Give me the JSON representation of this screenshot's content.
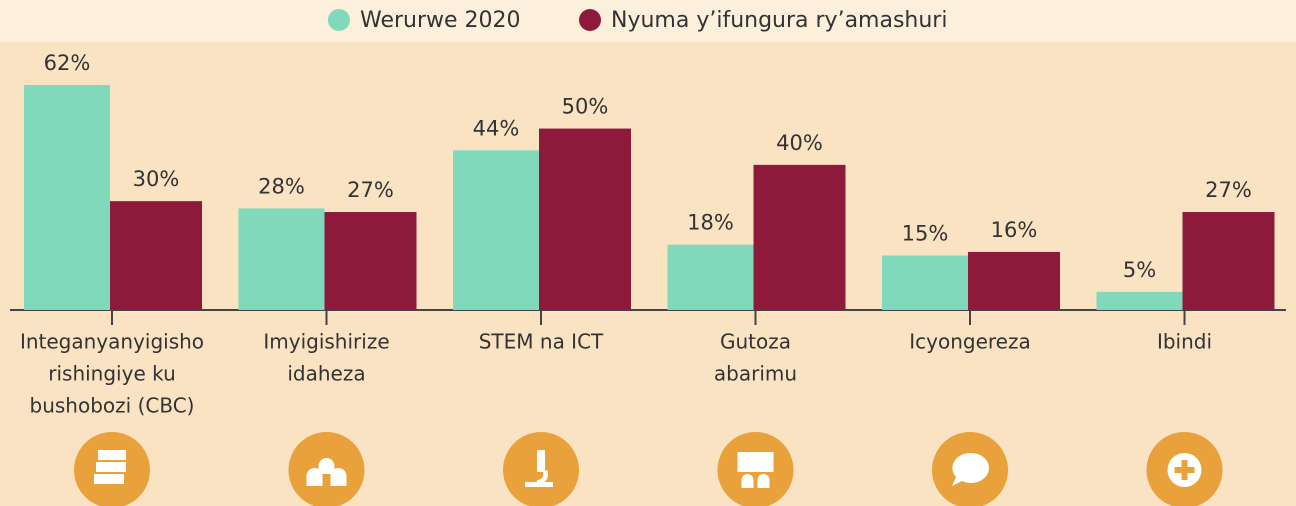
{
  "chart_data": {
    "type": "bar",
    "categories": [
      [
        "Integanyanyigisho",
        "rishingiye ku",
        "bushobozi (CBC)"
      ],
      [
        "Imyigishirize",
        "idaheza"
      ],
      [
        "STEM na ICT"
      ],
      [
        "Gutoza",
        "abarimu"
      ],
      [
        "Icyongereza"
      ],
      [
        "Ibindi"
      ]
    ],
    "series": [
      {
        "name": "Werurwe 2020",
        "color": "#80d9bb",
        "values": [
          62,
          28,
          44,
          18,
          15,
          5
        ],
        "value_labels": [
          "62%",
          "28%",
          "44%",
          "18%",
          "15%",
          "5%"
        ]
      },
      {
        "name": "Nyuma y’ifungura ry’amashuri",
        "color": "#8e1a3b",
        "values": [
          30,
          27,
          50,
          40,
          16,
          27
        ],
        "value_labels": [
          "30%",
          "27%",
          "50%",
          "40%",
          "16%",
          "27%"
        ]
      }
    ],
    "ylim": [
      0,
      70
    ],
    "legend": "top"
  }
}
